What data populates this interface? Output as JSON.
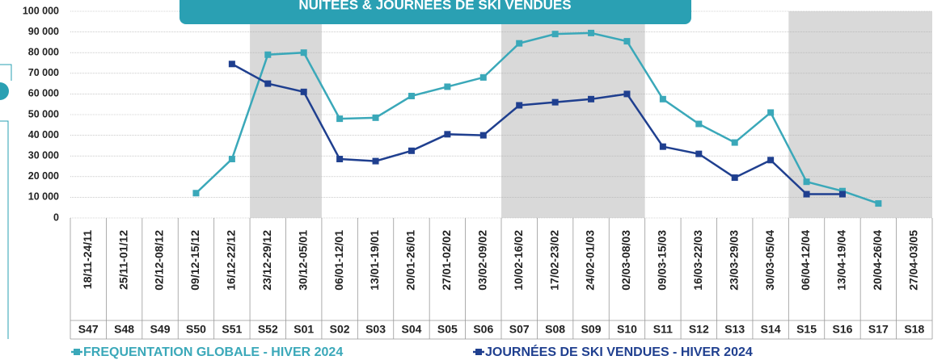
{
  "chart_data": {
    "type": "line",
    "title": "NUITÉES & JOURNÉES DE SKI VENDUES",
    "categories": [
      "18/11-24/11",
      "25/11-01/12",
      "02/12-08/12",
      "09/12-15/12",
      "16/12-22/12",
      "23/12-29/12",
      "30/12-05/01",
      "06/01-12/01",
      "13/01-19/01",
      "20/01-26/01",
      "27/01-02/02",
      "03/02-09/02",
      "10/02-16/02",
      "17/02-23/02",
      "24/02-01/03",
      "02/03-08/03",
      "09/03-15/03",
      "16/03-22/03",
      "23/03-29/03",
      "30/03-05/04",
      "06/04-12/04",
      "13/04-19/04",
      "20/04-26/04",
      "27/04-03/05"
    ],
    "week_labels": [
      "S47",
      "S48",
      "S49",
      "S50",
      "S51",
      "S52",
      "S01",
      "S02",
      "S03",
      "S04",
      "S05",
      "S06",
      "S07",
      "S08",
      "S09",
      "S10",
      "S11",
      "S12",
      "S13",
      "S14",
      "S15",
      "S16",
      "S17",
      "S18"
    ],
    "shaded_weeks": [
      [
        "S52",
        "S01"
      ],
      [
        "S07",
        "S10"
      ],
      [
        "S15",
        "S18"
      ]
    ],
    "series": [
      {
        "name": "FREQUENTATION GLOBALE - HIVER 2024",
        "color": "#3aa8b9",
        "values": [
          null,
          null,
          null,
          12000,
          28500,
          79000,
          80000,
          48000,
          48500,
          59000,
          63500,
          68000,
          84500,
          89000,
          89500,
          85500,
          57500,
          45500,
          36500,
          51000,
          17500,
          13000,
          7000,
          null
        ]
      },
      {
        "name": "JOURNÉES DE SKI VENDUES - HIVER 2024",
        "color": "#1f3f8f",
        "values": [
          null,
          null,
          null,
          null,
          74500,
          65000,
          61000,
          28500,
          27500,
          32500,
          40500,
          40000,
          54500,
          56000,
          57500,
          60000,
          34500,
          31000,
          19500,
          28000,
          11500,
          11500,
          null,
          null
        ]
      }
    ],
    "ylim": [
      0,
      100000
    ],
    "yticks": [
      {
        "value": 0,
        "label": "0"
      },
      {
        "value": 10000,
        "label": "10 000"
      },
      {
        "value": 20000,
        "label": "20 000"
      },
      {
        "value": 30000,
        "label": "30 000"
      },
      {
        "value": 40000,
        "label": "40 000"
      },
      {
        "value": 50000,
        "label": "50 000"
      },
      {
        "value": 60000,
        "label": "60 000"
      },
      {
        "value": 70000,
        "label": "70 000"
      },
      {
        "value": 80000,
        "label": "80 000"
      },
      {
        "value": 90000,
        "label": "90 000"
      },
      {
        "value": 100000,
        "label": "100 000"
      }
    ],
    "grid": true
  }
}
